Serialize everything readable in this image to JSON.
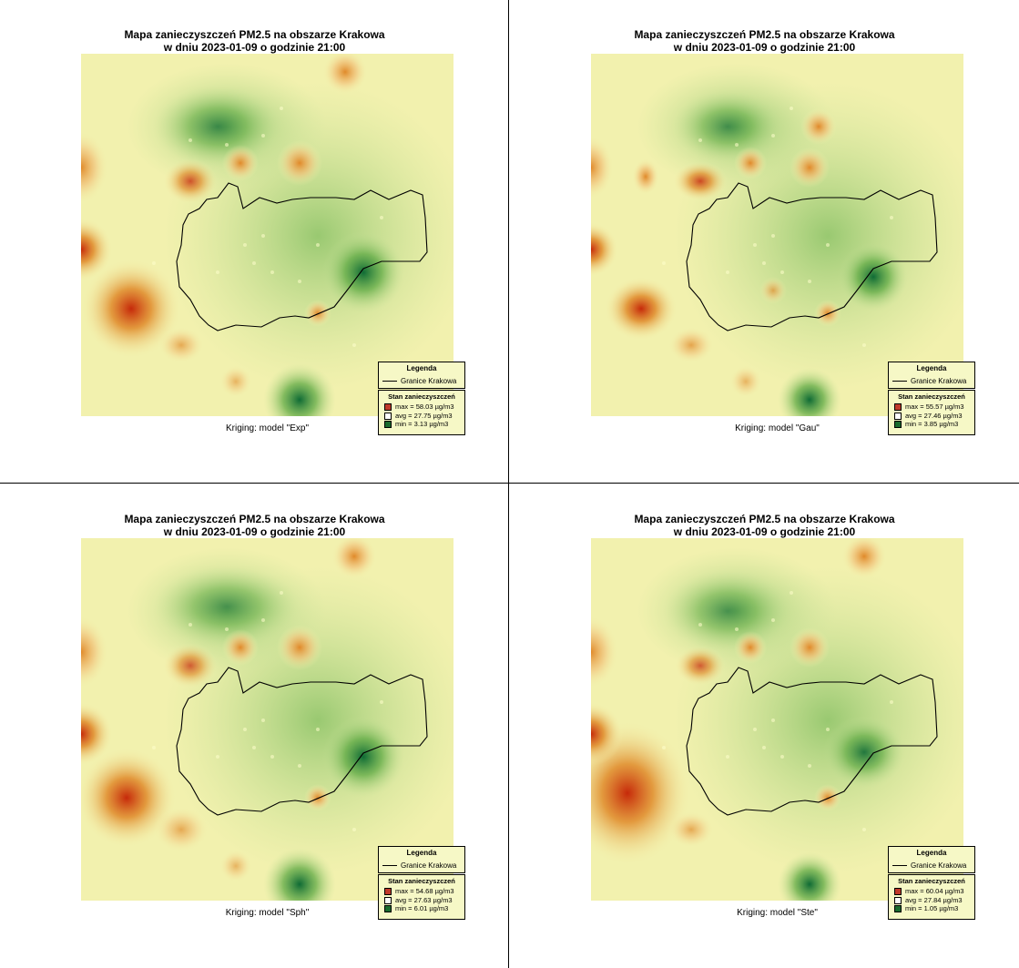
{
  "figure": {
    "title_line1": "Mapa zanieczyszczeń PM2.5 na obszarze Krakowa",
    "title_line2": "w dniu 2023-01-09 o godzinie 21:00",
    "legend_title": "Legenda",
    "boundary_label": "Granice Krakowa",
    "stats_title": "Stan zanieczyszczeń",
    "colors": {
      "high": "#c62a0a",
      "orange": "#e08a2a",
      "mid": "#f6f3b0",
      "light_green": "#c9e39a",
      "green": "#5faa45",
      "low": "#0f6b35",
      "background": "#ffffff"
    }
  },
  "panels": [
    {
      "subtitle": "Kriging: model \"Exp\"",
      "stats": [
        {
          "label": "max =",
          "value": "58.03 µg/m3",
          "color": "#c0392b"
        },
        {
          "label": "avg =",
          "value": "27.75 µg/m3",
          "color": "#ffffff"
        },
        {
          "label": "min =",
          "value": "3.13 µg/m3",
          "color": "#1a6b2e"
        }
      ]
    },
    {
      "subtitle": "Kriging: model \"Gau\"",
      "stats": [
        {
          "label": "max =",
          "value": "55.57 µg/m3",
          "color": "#c0392b"
        },
        {
          "label": "avg =",
          "value": "27.46 µg/m3",
          "color": "#ffffff"
        },
        {
          "label": "min =",
          "value": "3.85 µg/m3",
          "color": "#1a6b2e"
        }
      ]
    },
    {
      "subtitle": "Kriging: model \"Sph\"",
      "stats": [
        {
          "label": "max =",
          "value": "54.68 µg/m3",
          "color": "#c0392b"
        },
        {
          "label": "avg =",
          "value": "27.63 µg/m3",
          "color": "#ffffff"
        },
        {
          "label": "min =",
          "value": "6.01 µg/m3",
          "color": "#1a6b2e"
        }
      ]
    },
    {
      "subtitle": "Kriging: model \"Ste\"",
      "stats": [
        {
          "label": "max =",
          "value": "60.04 µg/m3",
          "color": "#c0392b"
        },
        {
          "label": "avg =",
          "value": "27.84 µg/m3",
          "color": "#ffffff"
        },
        {
          "label": "min =",
          "value": "1.05 µg/m3",
          "color": "#1a6b2e"
        }
      ]
    }
  ]
}
